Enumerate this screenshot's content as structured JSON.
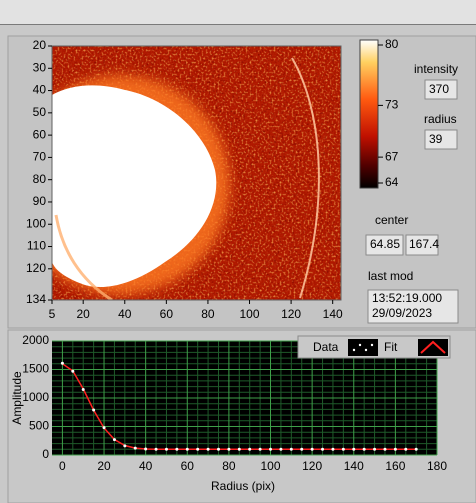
{
  "chart_data": [
    {
      "type": "heatmap",
      "xlim": [
        5,
        144
      ],
      "xticks": [
        5,
        20,
        40,
        60,
        80,
        100,
        120,
        140
      ],
      "ylim": [
        20,
        134
      ],
      "yticks": [
        20,
        30,
        40,
        50,
        60,
        70,
        80,
        90,
        100,
        110,
        120,
        134
      ],
      "colorbar_lim": [
        64,
        80
      ],
      "colorbar_ticks": [
        80,
        73,
        67,
        64
      ]
    },
    {
      "type": "line",
      "x_label": "Radius (pix)",
      "y_label": "Amplitude",
      "xlim": [
        -5,
        180
      ],
      "xticks": [
        0,
        20,
        40,
        60,
        80,
        100,
        120,
        140,
        160,
        180
      ],
      "ylim": [
        0,
        2000
      ],
      "yticks": [
        0,
        500,
        1000,
        1500,
        2000
      ],
      "grid": true,
      "x": [
        0,
        5,
        10,
        15,
        20,
        25,
        30,
        35,
        40,
        45,
        50,
        55,
        60,
        65,
        70,
        75,
        80,
        85,
        90,
        95,
        100,
        105,
        110,
        115,
        120,
        125,
        130,
        135,
        140,
        145,
        150,
        155,
        160,
        165,
        170
      ],
      "series": [
        {
          "name": "Data",
          "color": "#ffffff",
          "values": [
            1610,
            1470,
            1150,
            790,
            480,
            270,
            160,
            120,
            105,
            100,
            100,
            100,
            100,
            100,
            100,
            100,
            100,
            100,
            100,
            100,
            100,
            100,
            100,
            100,
            100,
            100,
            100,
            100,
            100,
            100,
            100,
            100,
            100,
            100,
            100
          ]
        },
        {
          "name": "Fit",
          "color": "#ff2020",
          "values": [
            1600,
            1475,
            1160,
            787,
            474,
            271,
            166,
            121,
            106,
            100,
            100,
            100,
            100,
            100,
            100,
            100,
            100,
            100,
            100,
            100,
            100,
            100,
            100,
            100,
            100,
            100,
            100,
            100,
            100,
            100,
            100,
            100,
            100,
            100,
            100
          ]
        }
      ]
    }
  ],
  "controls": {
    "intensity": {
      "label": "intensity",
      "value": 370
    },
    "radius": {
      "label": "radius",
      "value": 39
    },
    "center": {
      "label": "center",
      "values": [
        64.85,
        167.4
      ]
    },
    "last_mod": {
      "label": "last mod",
      "lines": [
        "13:52:19.000",
        "29/09/2023"
      ]
    }
  }
}
